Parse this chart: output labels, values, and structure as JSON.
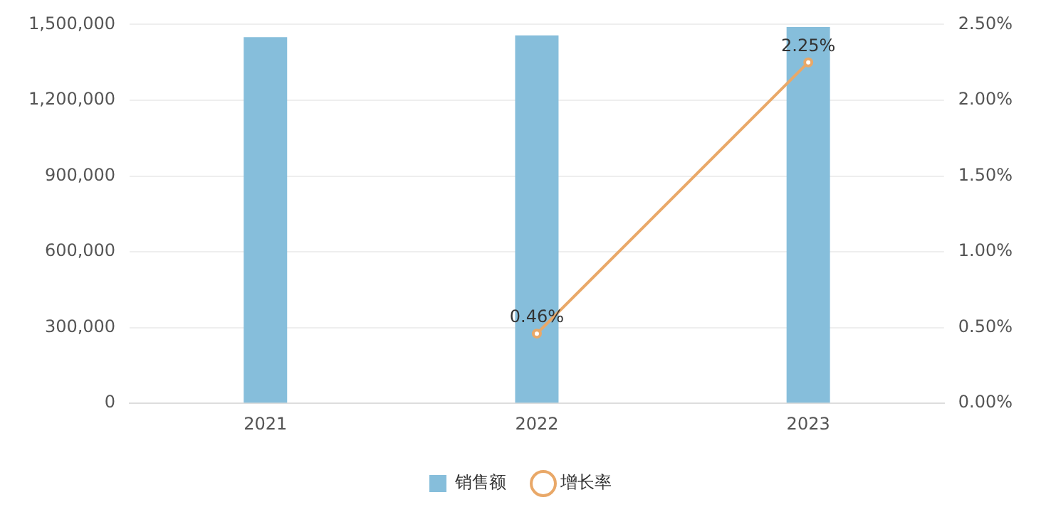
{
  "chart_data": {
    "type": "bar",
    "categories": [
      "2021",
      "2022",
      "2023"
    ],
    "series": [
      {
        "name": "销售额",
        "color": "#86bedb",
        "values": [
          1450000,
          1457000,
          1490000
        ]
      },
      {
        "name": "增长率",
        "type": "line",
        "axis": "y2",
        "color": "#e9a868",
        "values": [
          null,
          0.46,
          2.25
        ],
        "value_labels": [
          null,
          "0.46%",
          "2.25%"
        ],
        "marker": "circle"
      }
    ],
    "ylim": [
      0,
      1500000
    ],
    "yticks": [
      {
        "value": 0,
        "label": "0"
      },
      {
        "value": 300000,
        "label": "300,000"
      },
      {
        "value": 600000,
        "label": "600,000"
      },
      {
        "value": 900000,
        "label": "900,000"
      },
      {
        "value": 1200000,
        "label": "1,200,000"
      },
      {
        "value": 1500000,
        "label": "1,500,000"
      }
    ],
    "y2lim": [
      0,
      2.5
    ],
    "y2ticks": [
      {
        "value": 0,
        "label": "0.00%"
      },
      {
        "value": 0.5,
        "label": "0.50%"
      },
      {
        "value": 1,
        "label": "1.00%"
      },
      {
        "value": 1.5,
        "label": "1.50%"
      },
      {
        "value": 2,
        "label": "2.00%"
      },
      {
        "value": 2.5,
        "label": "2.50%"
      }
    ],
    "grid": "y",
    "legend": "bottom"
  }
}
